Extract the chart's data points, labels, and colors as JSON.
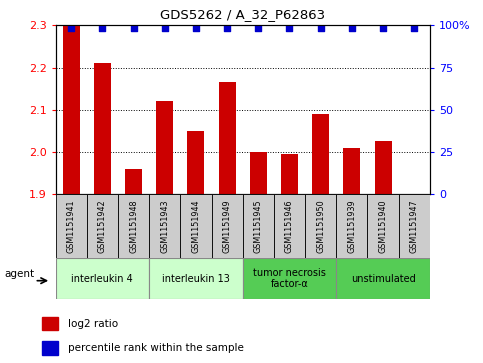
{
  "title": "GDS5262 / A_32_P62863",
  "samples": [
    "GSM1151941",
    "GSM1151942",
    "GSM1151948",
    "GSM1151943",
    "GSM1151944",
    "GSM1151949",
    "GSM1151945",
    "GSM1151946",
    "GSM1151950",
    "GSM1151939",
    "GSM1151940",
    "GSM1151947"
  ],
  "log2_ratio": [
    2.3,
    2.21,
    1.96,
    2.12,
    2.05,
    2.165,
    2.0,
    1.995,
    2.09,
    2.01,
    2.025,
    1.9
  ],
  "groups": [
    {
      "label": "interleukin 4",
      "indices": [
        0,
        1,
        2
      ],
      "color": "#ccffcc"
    },
    {
      "label": "interleukin 13",
      "indices": [
        3,
        4,
        5
      ],
      "color": "#ccffcc"
    },
    {
      "label": "tumor necrosis\nfactor-α",
      "indices": [
        6,
        7,
        8
      ],
      "color": "#55cc55"
    },
    {
      "label": "unstimulated",
      "indices": [
        9,
        10,
        11
      ],
      "color": "#55cc55"
    }
  ],
  "ylim": [
    1.9,
    2.3
  ],
  "yticks_left": [
    1.9,
    2.0,
    2.1,
    2.2,
    2.3
  ],
  "yticks_right": [
    0,
    25,
    50,
    75,
    100
  ],
  "bar_color": "#cc0000",
  "dot_color": "#0000cc",
  "bg_color": "#bbbbbb",
  "agent_label": "agent",
  "legend_log2": "log2 ratio",
  "legend_pct": "percentile rank within the sample"
}
